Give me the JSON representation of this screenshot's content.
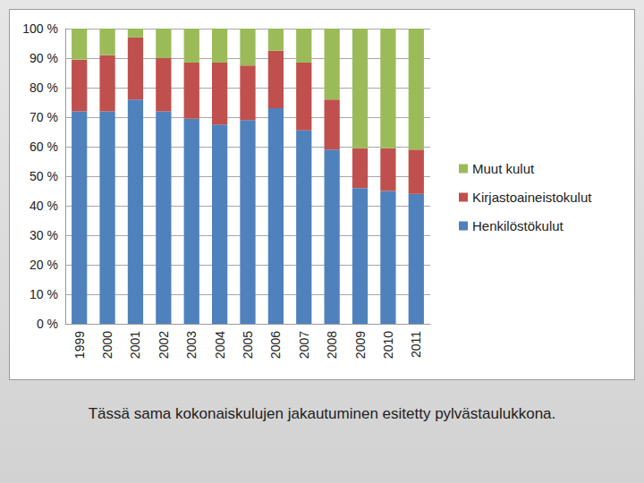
{
  "chart_data": {
    "type": "bar",
    "stacked": true,
    "caption": "Tässä sama kokonaiskulujen jakautuminen esitetty pylvästaulukkona.",
    "categories": [
      "1999",
      "2000",
      "2001",
      "2002",
      "2003",
      "2004",
      "2005",
      "2006",
      "2007",
      "2008",
      "2009",
      "2010",
      "2011"
    ],
    "series": [
      {
        "name": "Henkilöstökulut",
        "color": "#4f81bd",
        "values": [
          72,
          72,
          76,
          72,
          69.5,
          67.5,
          69,
          73,
          65.5,
          59,
          46,
          45,
          44
        ]
      },
      {
        "name": "Kirjastoaineistokulut",
        "color": "#c0504d",
        "values": [
          17.5,
          19,
          21,
          18,
          19,
          21,
          18.5,
          19.5,
          23,
          17,
          13.5,
          14.5,
          15
        ]
      },
      {
        "name": "Muut kulut",
        "color": "#9bbb59",
        "values": [
          10.5,
          9,
          3,
          10,
          11.5,
          11.5,
          12.5,
          7.5,
          11.5,
          24,
          40.5,
          40.5,
          41
        ]
      }
    ],
    "ylim": [
      0,
      100
    ],
    "yticks": [
      {
        "value": 0,
        "label": "0 %"
      },
      {
        "value": 10,
        "label": "10 %"
      },
      {
        "value": 20,
        "label": "20 %"
      },
      {
        "value": 30,
        "label": "30 %"
      },
      {
        "value": 40,
        "label": "40 %"
      },
      {
        "value": 50,
        "label": "50 %"
      },
      {
        "value": 60,
        "label": "60 %"
      },
      {
        "value": 70,
        "label": "70 %"
      },
      {
        "value": 80,
        "label": "80 %"
      },
      {
        "value": 90,
        "label": "90 %"
      },
      {
        "value": 100,
        "label": "100 %"
      }
    ],
    "grid": true,
    "legend": "right"
  }
}
